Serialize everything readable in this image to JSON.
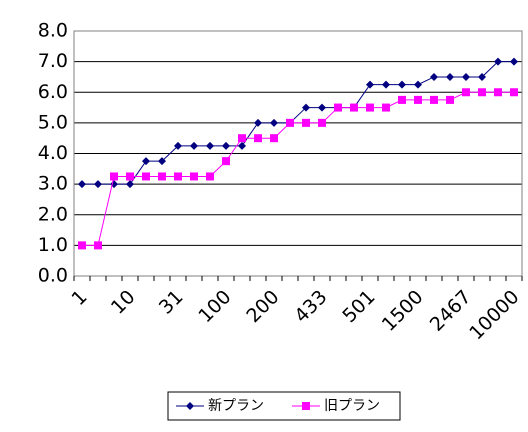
{
  "chart_data": {
    "type": "line",
    "categories": [
      "1",
      null,
      null,
      "10",
      null,
      null,
      "31",
      null,
      null,
      "100",
      null,
      null,
      "200",
      null,
      null,
      "433",
      null,
      null,
      "501",
      null,
      null,
      "1500",
      null,
      null,
      "2467",
      null,
      null,
      "10000"
    ],
    "series": [
      {
        "name": "新プラン",
        "color": "#000080",
        "marker": "diamond",
        "values": [
          3.0,
          3.0,
          3.0,
          3.0,
          3.75,
          3.75,
          4.25,
          4.25,
          4.25,
          4.25,
          4.25,
          5.0,
          5.0,
          5.0,
          5.5,
          5.5,
          5.5,
          5.5,
          6.25,
          6.25,
          6.25,
          6.25,
          6.5,
          6.5,
          6.5,
          6.5,
          7.0,
          7.0
        ]
      },
      {
        "name": "旧プラン",
        "color": "#ff00ff",
        "marker": "square",
        "values": [
          1.0,
          1.0,
          3.25,
          3.25,
          3.25,
          3.25,
          3.25,
          3.25,
          3.25,
          3.75,
          4.5,
          4.5,
          4.5,
          5.0,
          5.0,
          5.0,
          5.5,
          5.5,
          5.5,
          5.5,
          5.75,
          5.75,
          5.75,
          5.75,
          6.0,
          6.0,
          6.0,
          6.0
        ]
      }
    ],
    "ylim": [
      0,
      8
    ],
    "yticks": [
      {
        "value": 0,
        "label": "0.0"
      },
      {
        "value": 1,
        "label": "1.0"
      },
      {
        "value": 2,
        "label": "2.0"
      },
      {
        "value": 3,
        "label": "3.0"
      },
      {
        "value": 4,
        "label": "4.0"
      },
      {
        "value": 5,
        "label": "5.0"
      },
      {
        "value": 6,
        "label": "6.0"
      },
      {
        "value": 7,
        "label": "7.0"
      },
      {
        "value": 8,
        "label": "8.0"
      }
    ],
    "grid": true,
    "legend": "bottom"
  }
}
